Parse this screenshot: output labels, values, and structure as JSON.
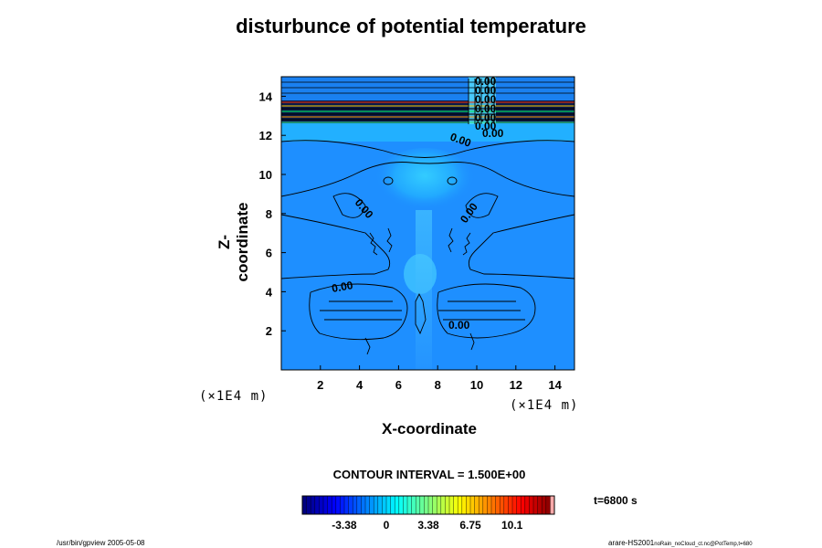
{
  "chart_data": {
    "type": "heatmap",
    "title": "disturbunce of potential temperature",
    "xlabel": "X-coordinate",
    "ylabel": "Z-coordinate",
    "x_unit": "(×1E4 m)",
    "y_unit": "(×1E4 m)",
    "xlim": [
      0,
      15
    ],
    "ylim": [
      0,
      15
    ],
    "x_ticks": [
      "2",
      "4",
      "6",
      "8",
      "10",
      "12",
      "14"
    ],
    "y_ticks": [
      "2",
      "4",
      "6",
      "8",
      "10",
      "12",
      "14"
    ],
    "contour_labels": [
      "0.00",
      "0.00",
      "0.00",
      "0.00",
      "0.00",
      "0.00"
    ],
    "top_labels": [
      "0.00",
      "0.00",
      "0.00",
      "0.00",
      "0.00",
      "0.00"
    ],
    "contour_interval": "CONTOUR INTERVAL = 1.500E+00",
    "time": "t=6800 s",
    "colorbar_ticks": [
      "-3.38",
      "0",
      "3.38",
      "6.75",
      "10.1"
    ],
    "colorbar_range": [
      -6.75,
      13.5
    ],
    "grid": false
  },
  "footer": {
    "left": "/usr/bin/gpview 2005-05-08",
    "right_main": "arare-HS2001",
    "right_sub": "noRain_noCloud_ct.nc@PotTemp,t=680"
  }
}
